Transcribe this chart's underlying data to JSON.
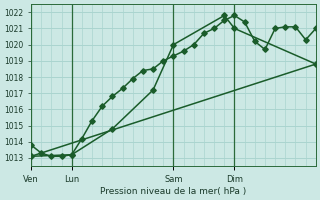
{
  "title": "Pression niveau de la mer( hPa )",
  "bg_color": "#cce8e4",
  "grid_color": "#aad4cf",
  "line_color": "#1a5c2a",
  "ylim": [
    1012.5,
    1022.5
  ],
  "yticks": [
    1013,
    1014,
    1015,
    1016,
    1017,
    1018,
    1019,
    1020,
    1021,
    1022
  ],
  "day_labels": [
    "Ven",
    "Lun",
    "Sam",
    "Dim"
  ],
  "day_positions": [
    0,
    2,
    7,
    10
  ],
  "total_steps": 14,
  "series1": {
    "x": [
      0,
      0.5,
      1.0,
      1.5,
      2.0,
      2.5,
      3.0,
      3.5,
      4.0,
      4.5,
      5.0,
      5.5,
      6.0,
      6.5,
      7.0,
      7.5,
      8.0,
      8.5,
      9.0,
      9.5,
      10.0,
      10.5,
      11.0,
      11.5,
      12.0,
      12.5,
      13.0,
      13.5,
      14.0
    ],
    "y": [
      1013.8,
      1013.3,
      1013.1,
      1013.1,
      1013.2,
      1014.2,
      1015.3,
      1016.2,
      1016.8,
      1017.3,
      1017.9,
      1018.4,
      1018.5,
      1019.0,
      1019.3,
      1019.6,
      1020.0,
      1020.7,
      1021.0,
      1021.5,
      1021.8,
      1021.4,
      1020.2,
      1019.7,
      1021.0,
      1021.1,
      1021.1,
      1020.3,
      1021.0
    ]
  },
  "series2": {
    "x": [
      0,
      2.0,
      4.0,
      6.0,
      7.0,
      9.5,
      10.0,
      14.0
    ],
    "y": [
      1013.1,
      1013.2,
      1014.8,
      1017.2,
      1020.0,
      1021.8,
      1021.0,
      1018.8
    ]
  },
  "series3": {
    "x": [
      0,
      14.0
    ],
    "y": [
      1013.1,
      1018.8
    ]
  }
}
